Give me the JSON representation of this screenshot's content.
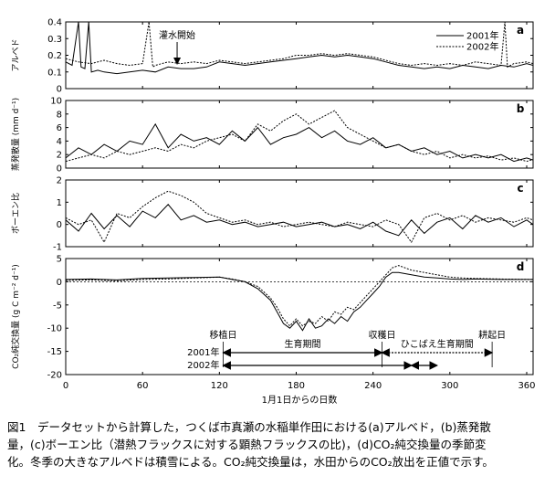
{
  "figure": {
    "x_axis": {
      "label": "1月1日からの日数",
      "ticks": [
        "0",
        "60",
        "120",
        "180",
        "240",
        "300",
        "360"
      ]
    },
    "legend": [
      {
        "label": "2001年",
        "style": "solid"
      },
      {
        "label": "2002年",
        "style": "dotted"
      }
    ],
    "panels": [
      {
        "id": "a",
        "ylabel": "アルベド",
        "ylim": [
          0,
          0.4
        ],
        "yticks": [
          "0",
          "0.1",
          "0.2",
          "0.3",
          "0.4"
        ],
        "annotation": "灌水開始"
      },
      {
        "id": "b",
        "ylabel": "蒸発散量 (mm d⁻¹)",
        "ylim": [
          0,
          10
        ],
        "yticks": [
          "0",
          "2",
          "4",
          "6",
          "8",
          "10"
        ]
      },
      {
        "id": "c",
        "ylabel": "ボーエン比",
        "ylim": [
          -1,
          2
        ],
        "yticks": [
          "-1",
          "0",
          "1",
          "2"
        ]
      },
      {
        "id": "d",
        "ylabel": "CO₂純交換量 (g C m⁻² d⁻¹)",
        "ylim": [
          -20,
          5
        ],
        "yticks": [
          "-20",
          "-15",
          "-10",
          "-5",
          "0",
          "5"
        ],
        "labels": {
          "transplant": "移植日",
          "harvest": "収穫日",
          "tillage": "耕起日",
          "growing": "生育期間",
          "ratoon": "ひこばえ生育期間",
          "y2001": "2001年",
          "y2002": "2002年"
        }
      }
    ]
  },
  "chart_data": [
    {
      "type": "line",
      "panel": "a",
      "ylabel": "アルベド",
      "xlim": [
        0,
        365
      ],
      "ylim": [
        0,
        0.4
      ],
      "series": [
        {
          "name": "2001年",
          "style": "solid",
          "x": [
            0,
            5,
            10,
            12,
            15,
            18,
            20,
            25,
            30,
            40,
            50,
            60,
            70,
            80,
            90,
            100,
            110,
            120,
            130,
            140,
            150,
            160,
            170,
            180,
            190,
            200,
            210,
            220,
            230,
            240,
            250,
            260,
            270,
            280,
            290,
            300,
            310,
            320,
            330,
            340,
            350,
            360,
            365
          ],
          "y": [
            0.16,
            0.14,
            0.4,
            0.13,
            0.12,
            0.4,
            0.1,
            0.11,
            0.1,
            0.09,
            0.1,
            0.11,
            0.1,
            0.13,
            0.12,
            0.12,
            0.13,
            0.16,
            0.15,
            0.14,
            0.15,
            0.16,
            0.17,
            0.18,
            0.19,
            0.2,
            0.19,
            0.2,
            0.19,
            0.18,
            0.16,
            0.14,
            0.13,
            0.12,
            0.13,
            0.12,
            0.14,
            0.13,
            0.12,
            0.14,
            0.13,
            0.15,
            0.14
          ]
        },
        {
          "name": "2002年",
          "style": "dotted",
          "x": [
            0,
            10,
            20,
            30,
            40,
            50,
            60,
            65,
            68,
            70,
            80,
            90,
            100,
            110,
            120,
            130,
            140,
            150,
            160,
            170,
            180,
            190,
            200,
            210,
            220,
            230,
            240,
            250,
            260,
            270,
            280,
            290,
            300,
            310,
            320,
            330,
            340,
            343,
            345,
            350,
            360,
            365
          ],
          "y": [
            0.18,
            0.16,
            0.15,
            0.17,
            0.15,
            0.14,
            0.15,
            0.4,
            0.13,
            0.14,
            0.16,
            0.15,
            0.16,
            0.15,
            0.17,
            0.16,
            0.15,
            0.16,
            0.17,
            0.18,
            0.2,
            0.2,
            0.21,
            0.2,
            0.21,
            0.2,
            0.19,
            0.17,
            0.15,
            0.14,
            0.15,
            0.14,
            0.15,
            0.14,
            0.16,
            0.15,
            0.14,
            0.4,
            0.13,
            0.15,
            0.16,
            0.15
          ]
        }
      ]
    },
    {
      "type": "line",
      "panel": "b",
      "ylabel": "蒸発散量 (mm d⁻¹)",
      "xlim": [
        0,
        365
      ],
      "ylim": [
        0,
        10
      ],
      "series": [
        {
          "name": "2001年",
          "style": "solid",
          "x": [
            0,
            10,
            20,
            30,
            40,
            50,
            60,
            70,
            80,
            90,
            100,
            110,
            120,
            130,
            140,
            150,
            160,
            170,
            180,
            190,
            200,
            210,
            220,
            230,
            240,
            250,
            260,
            270,
            280,
            290,
            300,
            310,
            320,
            330,
            340,
            350,
            360,
            365
          ],
          "y": [
            1.5,
            3.0,
            2.0,
            3.5,
            2.5,
            4.0,
            3.5,
            6.5,
            3.0,
            5.0,
            4.0,
            4.5,
            3.5,
            5.5,
            4.0,
            6.0,
            3.5,
            4.5,
            5.0,
            6.0,
            4.5,
            5.5,
            4.0,
            3.5,
            4.5,
            3.0,
            3.5,
            2.5,
            3.0,
            2.0,
            2.5,
            1.5,
            2.0,
            1.5,
            2.0,
            1.0,
            1.5,
            1.2
          ]
        },
        {
          "name": "2002年",
          "style": "dotted",
          "x": [
            0,
            10,
            20,
            30,
            40,
            50,
            60,
            70,
            80,
            90,
            100,
            110,
            120,
            130,
            140,
            150,
            160,
            170,
            180,
            190,
            200,
            210,
            220,
            230,
            240,
            250,
            260,
            270,
            280,
            290,
            300,
            310,
            320,
            330,
            340,
            350,
            360,
            365
          ],
          "y": [
            1.0,
            1.5,
            2.0,
            1.5,
            2.5,
            2.0,
            2.5,
            3.0,
            2.5,
            3.5,
            3.0,
            4.0,
            4.5,
            5.0,
            4.0,
            6.5,
            5.5,
            7.0,
            8.0,
            6.5,
            7.5,
            8.5,
            6.0,
            5.0,
            4.0,
            3.0,
            3.5,
            2.5,
            2.0,
            2.5,
            1.5,
            2.0,
            1.5,
            1.8,
            1.2,
            1.5,
            1.0,
            1.3
          ]
        }
      ]
    },
    {
      "type": "line",
      "panel": "c",
      "ylabel": "ボーエン比",
      "xlim": [
        0,
        365
      ],
      "ylim": [
        -1,
        2
      ],
      "series": [
        {
          "name": "2001年",
          "style": "solid",
          "x": [
            0,
            10,
            20,
            30,
            40,
            50,
            60,
            70,
            80,
            90,
            100,
            110,
            120,
            130,
            140,
            150,
            160,
            170,
            180,
            190,
            200,
            210,
            220,
            230,
            240,
            250,
            260,
            270,
            280,
            290,
            300,
            310,
            320,
            330,
            340,
            350,
            360,
            365
          ],
          "y": [
            0.2,
            -0.3,
            0.5,
            -0.2,
            0.4,
            -0.1,
            0.6,
            0.3,
            0.9,
            0.2,
            0.4,
            0.1,
            0.2,
            0.0,
            0.1,
            -0.1,
            0.0,
            0.1,
            -0.1,
            0.0,
            0.1,
            -0.1,
            0.0,
            -0.2,
            0.1,
            -0.3,
            -0.5,
            0.2,
            -0.4,
            0.1,
            0.3,
            -0.2,
            0.4,
            0.1,
            0.3,
            -0.1,
            0.2,
            0.0
          ]
        },
        {
          "name": "2002年",
          "style": "dotted",
          "x": [
            0,
            10,
            20,
            30,
            40,
            50,
            60,
            70,
            80,
            90,
            100,
            110,
            120,
            130,
            140,
            150,
            160,
            170,
            180,
            190,
            200,
            210,
            220,
            230,
            240,
            250,
            260,
            270,
            280,
            290,
            300,
            310,
            320,
            330,
            340,
            350,
            360,
            365
          ],
          "y": [
            0.3,
            0.0,
            0.2,
            -0.8,
            0.5,
            0.3,
            0.8,
            1.2,
            1.5,
            1.3,
            1.0,
            0.5,
            0.3,
            0.1,
            0.2,
            0.0,
            0.1,
            -0.1,
            0.0,
            0.1,
            0.0,
            -0.1,
            0.1,
            0.0,
            -0.1,
            0.2,
            0.0,
            -0.8,
            0.3,
            0.5,
            0.2,
            0.4,
            0.1,
            0.3,
            0.2,
            0.1,
            0.3,
            0.2
          ]
        }
      ]
    },
    {
      "type": "line",
      "panel": "d",
      "ylabel": "CO₂純交換量 (g C m⁻² d⁻¹)",
      "xlim": [
        0,
        365
      ],
      "ylim": [
        -20,
        5
      ],
      "series": [
        {
          "name": "2001年",
          "style": "solid",
          "x": [
            0,
            20,
            40,
            60,
            80,
            100,
            120,
            130,
            140,
            150,
            160,
            165,
            170,
            175,
            180,
            185,
            190,
            195,
            200,
            205,
            210,
            215,
            220,
            225,
            230,
            235,
            240,
            245,
            250,
            255,
            260,
            270,
            280,
            290,
            300,
            310,
            320,
            340,
            365
          ],
          "y": [
            0.5,
            0.6,
            0.4,
            0.7,
            0.8,
            0.9,
            1.0,
            0.5,
            0.0,
            -1.5,
            -4.0,
            -6.5,
            -9.0,
            -10.0,
            -8.5,
            -10.5,
            -8.0,
            -10.0,
            -9.5,
            -8.0,
            -9.0,
            -7.5,
            -8.5,
            -6.5,
            -5.5,
            -4.0,
            -2.5,
            -1.0,
            1.0,
            2.0,
            2.0,
            1.5,
            1.0,
            0.8,
            0.6,
            0.5,
            0.6,
            0.5,
            0.5
          ]
        },
        {
          "name": "2002年",
          "style": "dotted",
          "x": [
            0,
            20,
            40,
            60,
            80,
            100,
            120,
            130,
            140,
            150,
            160,
            165,
            170,
            175,
            180,
            185,
            190,
            195,
            200,
            205,
            210,
            215,
            220,
            225,
            230,
            235,
            240,
            245,
            250,
            255,
            260,
            270,
            280,
            290,
            300,
            310,
            320,
            340,
            365
          ],
          "y": [
            0.3,
            0.4,
            0.2,
            0.5,
            0.6,
            0.8,
            1.0,
            0.6,
            0.0,
            -1.0,
            -3.5,
            -5.5,
            -8.0,
            -9.5,
            -8.0,
            -9.5,
            -8.5,
            -9.0,
            -7.5,
            -8.5,
            -6.5,
            -7.0,
            -5.5,
            -6.0,
            -4.5,
            -3.0,
            -1.5,
            0.0,
            1.5,
            3.0,
            3.5,
            2.5,
            2.0,
            1.5,
            1.0,
            0.8,
            0.7,
            0.6,
            0.5
          ]
        }
      ],
      "markers": [
        {
          "label": "移植日",
          "x": 123
        },
        {
          "label": "収穫日",
          "x": 247
        },
        {
          "label": "耕起日",
          "x": 333
        }
      ],
      "periods": [
        {
          "label": "生育期間",
          "year": "2001年",
          "start": 123,
          "end": 247
        },
        {
          "label": "生育期間",
          "year": "2002年",
          "start": 123,
          "end": 270
        },
        {
          "label": "ひこばえ生育期間",
          "year": "2001年",
          "start": 247,
          "end": 333
        }
      ]
    }
  ],
  "caption": {
    "line1": "図1　データセットから計算した，つくば市真瀬の水稲単作田における(a)アルベド，(b)蒸発散",
    "line2": "量，(c)ボーエン比（潜熱フラックスに対する顕熱フラックスの比)，(d)CO₂純交換量の季節変",
    "line3": "化。冬季の大きなアルベドは積雪による。CO₂純交換量は，水田からのCO₂放出を正値で示す。"
  }
}
